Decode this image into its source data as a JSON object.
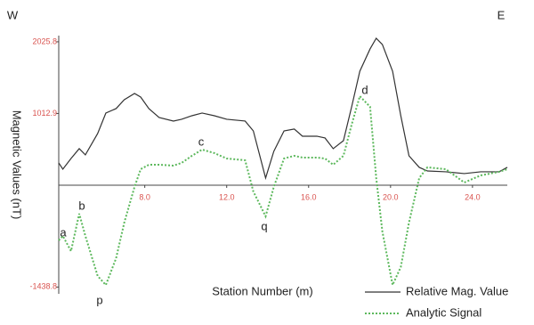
{
  "chart_data": {
    "type": "line",
    "xlabel": "Station Number (m)",
    "ylabel": "Magnetic Values (nT)",
    "annotations": [
      "W",
      "E",
      "a",
      "b",
      "p",
      "c",
      "q",
      "d"
    ],
    "x": [
      3.8,
      4.0,
      4.4,
      4.8,
      5.1,
      5.7,
      6.1,
      6.6,
      7.0,
      7.5,
      7.8,
      8.2,
      8.7,
      9.4,
      9.8,
      10.3,
      10.8,
      11.4,
      12.0,
      12.9,
      13.3,
      13.9,
      14.3,
      14.8,
      15.3,
      15.7,
      16.4,
      16.8,
      17.2,
      17.7,
      18.1,
      18.5,
      19.0,
      19.3,
      19.6,
      20.1,
      20.5,
      20.9,
      21.4,
      21.8,
      22.7,
      23.6,
      24.4,
      25.3,
      25.7
    ],
    "series": [
      {
        "name": "Relative Mag. Value",
        "color": "#333333",
        "style": "solid",
        "values": [
          315,
          226,
          377,
          516,
          428,
          730,
          1019,
          1082,
          1208,
          1296,
          1245,
          1082,
          956,
          906,
          931,
          981,
          1019,
          981,
          931,
          906,
          767,
          101,
          478,
          767,
          793,
          692,
          692,
          667,
          516,
          629,
          1107,
          1610,
          1925,
          2076,
          1988,
          1610,
          981,
          415,
          252,
          201,
          189,
          164,
          189,
          189,
          252
        ]
      },
      {
        "name": "Analytic Signal",
        "color": "#5cb85c",
        "style": "dotted",
        "values": [
          -780,
          -717,
          -931,
          -403,
          -717,
          -1283,
          -1410,
          -1032,
          -528,
          -25,
          226,
          289,
          289,
          277,
          315,
          415,
          503,
          453,
          377,
          352,
          -88,
          -440,
          -25,
          377,
          415,
          390,
          390,
          377,
          289,
          415,
          855,
          1258,
          1107,
          101,
          -654,
          -1409,
          -1157,
          -528,
          101,
          252,
          226,
          38,
          138,
          189,
          226
        ]
      }
    ],
    "xlim": [
      3.8,
      25.7
    ],
    "ylim": [
      -1535,
      2113
    ],
    "xticks": [
      {
        "value": 8,
        "label": "8.0"
      },
      {
        "value": 12,
        "label": "12.0"
      },
      {
        "value": 16,
        "label": "16.0"
      },
      {
        "value": 20,
        "label": "20.0"
      },
      {
        "value": 24,
        "label": "24.0"
      }
    ],
    "yticks": [
      2025.8,
      1012.9,
      -1438.8
    ],
    "tick_color": "#d9534f"
  }
}
